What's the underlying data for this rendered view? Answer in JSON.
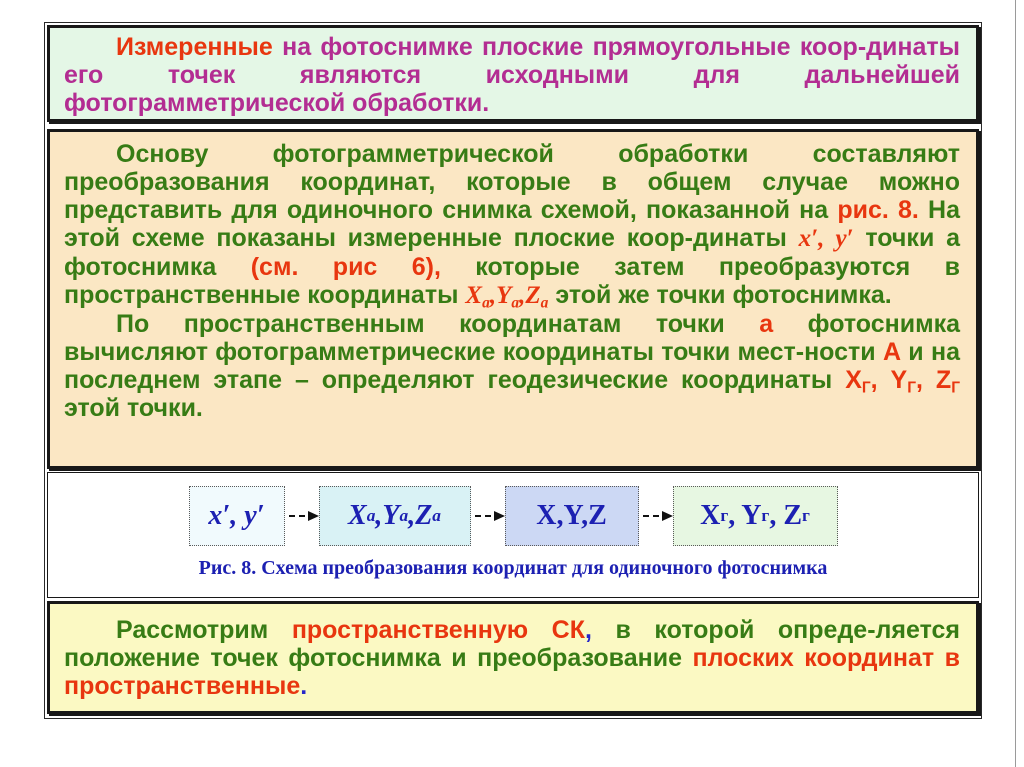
{
  "colors": {
    "page_bg": "#ffffff",
    "intro_bg": "#e4f7e6",
    "main_bg": "#fbe7c4",
    "diagram_bg": "#ffffff",
    "conclusion_bg": "#fbf9c3",
    "border": "#181818",
    "magenta_text": "#b32d92",
    "red_text": "#e8360f",
    "green_text": "#377c15",
    "blue_text": "#2626c9",
    "diagram_label": "#1c20b2"
  },
  "intro": {
    "segments": [
      {
        "t": "Измеренные",
        "c": "red"
      },
      {
        "t": " на фотоснимке плоские прямоугольные коор-динаты его точек являются исходными для дальнейшей фотограмметрической обработки.",
        "c": "magenta"
      }
    ]
  },
  "main": {
    "para1": [
      {
        "t": "Основу фотограмметрической обработки составляют преобразования координат, которые в общем случае можно представить для одиночного снимка схемой, показанной на ",
        "c": "green"
      },
      {
        "t": "рис. 8.",
        "c": "red"
      },
      {
        "t": " На этой схеме показаны измеренные плоские коор-динаты ",
        "c": "green"
      },
      {
        "t": "x′, y′",
        "c": "red",
        "i": true
      },
      {
        "t": " точки а фотоснимка ",
        "c": "green"
      },
      {
        "t": "(см. рис 6),",
        "c": "red"
      },
      {
        "t": " которые затем преобразуются в пространственные координаты ",
        "c": "green"
      },
      {
        "t": "X",
        "c": "red",
        "i": true
      },
      {
        "t": "a",
        "c": "red",
        "i": true,
        "sub": true
      },
      {
        "t": ",Y",
        "c": "red",
        "i": true
      },
      {
        "t": "a",
        "c": "red",
        "i": true,
        "sub": true
      },
      {
        "t": ",Z",
        "c": "red",
        "i": true
      },
      {
        "t": "a",
        "c": "red",
        "i": true,
        "sub": true
      },
      {
        "t": " этой же точки фотоснимка.",
        "c": "green"
      }
    ],
    "para2": [
      {
        "t": "По пространственным координатам точки ",
        "c": "green"
      },
      {
        "t": "а",
        "c": "red"
      },
      {
        "t": " фотоснимка вычисляют фотограмметрические координаты точки мест-ности ",
        "c": "green"
      },
      {
        "t": "А",
        "c": "red"
      },
      {
        "t": " и на последнем этапе – определяют геодезические координаты ",
        "c": "green"
      },
      {
        "t": "X",
        "c": "red"
      },
      {
        "t": "Г",
        "c": "red",
        "sub": true
      },
      {
        "t": ", Y",
        "c": "red"
      },
      {
        "t": "Г",
        "c": "red",
        "sub": true
      },
      {
        "t": ", Z",
        "c": "red"
      },
      {
        "t": "Г",
        "c": "red",
        "sub": true
      },
      {
        "t": " этой точки.",
        "c": "green"
      }
    ]
  },
  "diagram": {
    "nodes": [
      {
        "bg": "#f1fafd",
        "label": [
          {
            "t": "x′, y′",
            "i": true
          }
        ]
      },
      {
        "bg": "#d9f2f5",
        "label": [
          {
            "t": "X",
            "i": true
          },
          {
            "t": "a",
            "i": true,
            "sub": true
          },
          {
            "t": ",Y",
            "i": true
          },
          {
            "t": "a",
            "i": true,
            "sub": true
          },
          {
            "t": ",Z",
            "i": true
          },
          {
            "t": "a",
            "i": true,
            "sub": true
          }
        ]
      },
      {
        "bg": "#ccd8f4",
        "label": [
          {
            "t": "X,Y,Z"
          }
        ]
      },
      {
        "bg": "#e7f7e2",
        "label": [
          {
            "t": "X"
          },
          {
            "t": "г",
            "sub": true
          },
          {
            "t": ", Y"
          },
          {
            "t": "г",
            "sub": true
          },
          {
            "t": ", Z"
          },
          {
            "t": "г",
            "sub": true
          }
        ]
      }
    ],
    "caption": "Рис. 8.  Схема преобразования координат для одиночного фотоснимка"
  },
  "conclusion": {
    "segments": [
      {
        "t": "Рассмотрим ",
        "c": "green"
      },
      {
        "t": "пространственную СК",
        "c": "red"
      },
      {
        "t": ",",
        "c": "blue"
      },
      {
        "t": " в которой опреде-ляется положение точек фотоснимка и преобразование ",
        "c": "green"
      },
      {
        "t": "плоских координат в пространственные",
        "c": "red"
      },
      {
        "t": ".",
        "c": "blue"
      }
    ]
  }
}
